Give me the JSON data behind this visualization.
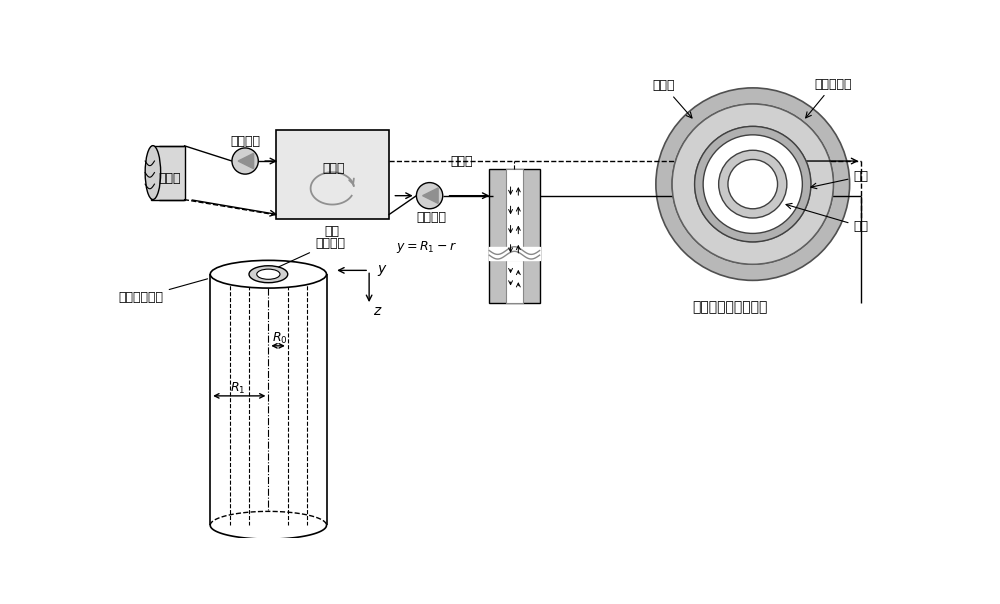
{
  "bg_color": "#ffffff",
  "label_cooling_pump": "冷却水泵",
  "label_user_side": "用户侧",
  "label_heat_pump": "热泵",
  "label_heat_cycle": "热循环",
  "label_geo_side": "地源侧",
  "label_freeze_pump": "冷冻水泵",
  "label_outer_ring": "套管外管圆环",
  "label_inner_pipe": "套管内管",
  "label_rock": "岩石层",
  "label_concrete": "混凝土填料",
  "label_outer_pipe": "外管",
  "label_inner_pipe2": "内管",
  "title": "中深层地埋管换热器",
  "gray1": "#c8c8c8",
  "gray2": "#b0b0b0",
  "gray3": "#909090",
  "gray4": "#e0e0e0",
  "gray5": "#d4d4d4"
}
